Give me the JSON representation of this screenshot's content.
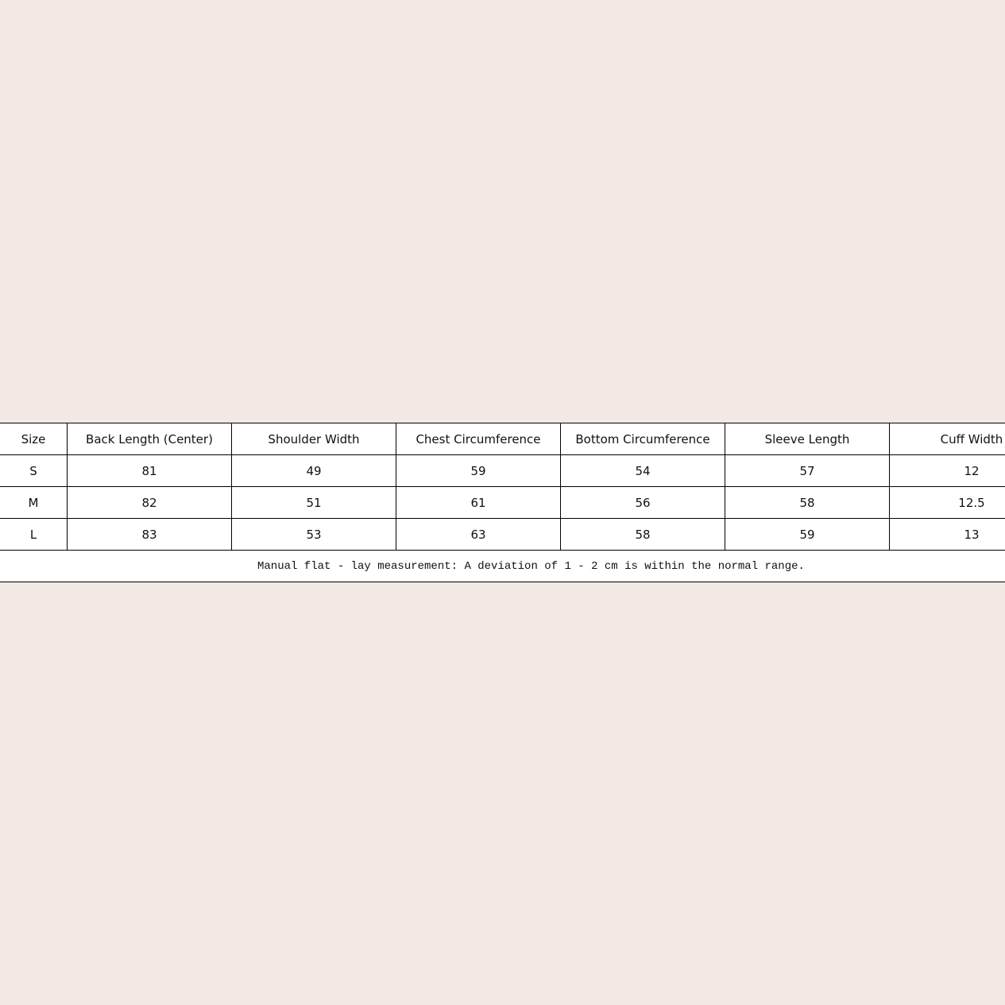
{
  "table": {
    "headers": [
      "Size",
      "Back Length (Center)",
      "Shoulder Width",
      "Chest Circumference",
      "Bottom Circumference",
      "Sleeve Length",
      "Cuff Width"
    ],
    "rows": [
      [
        "S",
        "81",
        "49",
        "59",
        "54",
        "57",
        "12"
      ],
      [
        "M",
        "82",
        "51",
        "61",
        "56",
        "58",
        "12.5"
      ],
      [
        "L",
        "83",
        "53",
        "63",
        "58",
        "59",
        "13"
      ]
    ],
    "note": "Manual flat - lay measurement: A deviation of 1 - 2 cm is within the normal range."
  },
  "colors": {
    "background": "#f2e9e4",
    "table": "#ffffff",
    "border": "#000000"
  }
}
